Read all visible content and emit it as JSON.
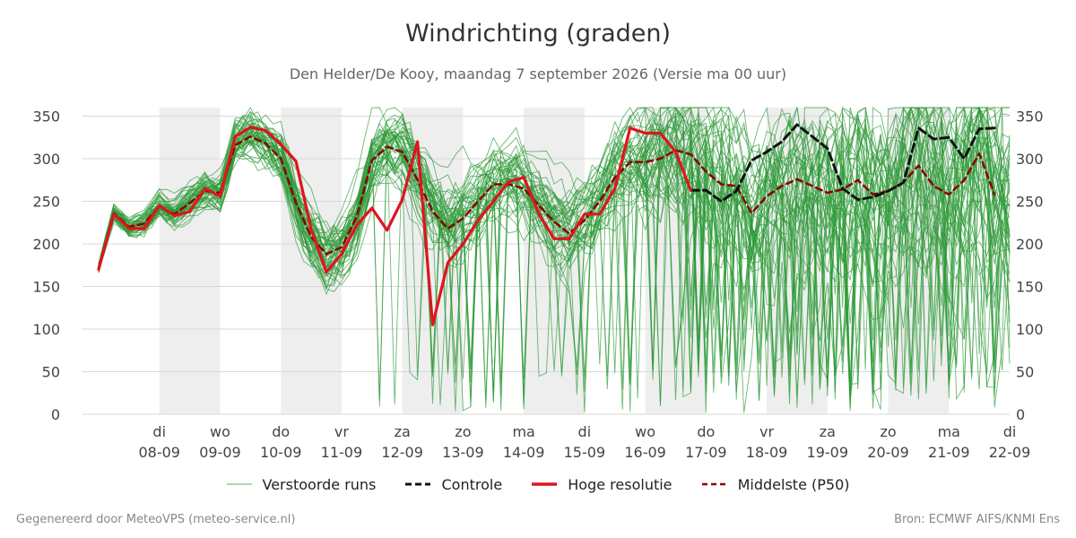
{
  "title": "Windrichting (graden)",
  "subtitle": "Den Helder/De Kooy, maandag  7 september 2026 (Versie ma 00 uur)",
  "footer": {
    "left": "Gegenereerd door MeteoVPS (meteo-service.nl)",
    "right": "Bron: ECMWF AIFS/KNMI Ens"
  },
  "legend": [
    {
      "label": "Verstoorde runs",
      "color": "#3a9a3a",
      "style": "thin"
    },
    {
      "label": "Controle",
      "color": "#111111",
      "style": "dashed"
    },
    {
      "label": "Hoge resolutie",
      "color": "#e0141e",
      "style": "solid"
    },
    {
      "label": "Middelste (P50)",
      "color": "#8b0000",
      "style": "dashed"
    }
  ],
  "chart_data": {
    "type": "line",
    "x_unit": "dagen na 07-09 00 uur",
    "xlim": [
      0,
      15
    ],
    "ylim": [
      0,
      360
    ],
    "yticks": [
      0,
      50,
      100,
      150,
      200,
      250,
      300,
      350
    ],
    "grid": true,
    "legend_position": "bottom",
    "weekend_shading": [
      [
        1,
        2
      ],
      [
        3,
        4
      ],
      [
        5,
        6
      ],
      [
        7,
        8
      ],
      [
        9,
        10
      ],
      [
        11,
        12
      ],
      [
        13,
        14
      ]
    ],
    "day_ticks": [
      {
        "x": 1,
        "day": "di",
        "date": "08-09"
      },
      {
        "x": 2,
        "day": "wo",
        "date": "09-09"
      },
      {
        "x": 3,
        "day": "do",
        "date": "10-09"
      },
      {
        "x": 4,
        "day": "vr",
        "date": "11-09"
      },
      {
        "x": 5,
        "day": "za",
        "date": "12-09"
      },
      {
        "x": 6,
        "day": "zo",
        "date": "13-09"
      },
      {
        "x": 7,
        "day": "ma",
        "date": "14-09"
      },
      {
        "x": 8,
        "day": "di",
        "date": "15-09"
      },
      {
        "x": 9,
        "day": "wo",
        "date": "16-09"
      },
      {
        "x": 10,
        "day": "do",
        "date": "17-09"
      },
      {
        "x": 11,
        "day": "vr",
        "date": "18-09"
      },
      {
        "x": 12,
        "day": "za",
        "date": "19-09"
      },
      {
        "x": 13,
        "day": "zo",
        "date": "20-09"
      },
      {
        "x": 14,
        "day": "ma",
        "date": "21-09"
      },
      {
        "x": 15,
        "day": "di",
        "date": "22-09"
      }
    ],
    "series": [
      {
        "name": "Hoge resolutie",
        "color": "#e0141e",
        "style": "solid",
        "points": [
          [
            0,
            170
          ],
          [
            0.25,
            235
          ],
          [
            0.5,
            218
          ],
          [
            0.75,
            218
          ],
          [
            1,
            245
          ],
          [
            1.25,
            233
          ],
          [
            1.5,
            238
          ],
          [
            1.75,
            265
          ],
          [
            2,
            256
          ],
          [
            2.25,
            326
          ],
          [
            2.5,
            337
          ],
          [
            2.75,
            333
          ],
          [
            3,
            317
          ],
          [
            3.25,
            297
          ],
          [
            3.5,
            217
          ],
          [
            3.75,
            167
          ],
          [
            4,
            188
          ],
          [
            4.25,
            222
          ],
          [
            4.5,
            242
          ],
          [
            4.75,
            216
          ],
          [
            5,
            252
          ],
          [
            5.25,
            320
          ],
          [
            5.5,
            105
          ],
          [
            5.75,
            178
          ],
          [
            6,
            200
          ],
          [
            6.25,
            228
          ],
          [
            6.5,
            250
          ],
          [
            6.75,
            273
          ],
          [
            7,
            278
          ],
          [
            7.25,
            235
          ],
          [
            7.5,
            206
          ],
          [
            7.75,
            206
          ],
          [
            8,
            235
          ],
          [
            8.25,
            235
          ],
          [
            8.5,
            265
          ],
          [
            8.75,
            336
          ],
          [
            9,
            330
          ],
          [
            9.25,
            330
          ],
          [
            9.5,
            308
          ],
          [
            9.75,
            263
          ]
        ]
      },
      {
        "name": "Controle",
        "color": "#111111",
        "style": "dashed",
        "points": [
          [
            9.75,
            263
          ],
          [
            10,
            263
          ],
          [
            10.25,
            250
          ],
          [
            10.5,
            262
          ],
          [
            10.75,
            298
          ],
          [
            11,
            308
          ],
          [
            11.25,
            320
          ],
          [
            11.5,
            340
          ],
          [
            11.75,
            326
          ],
          [
            12,
            312
          ],
          [
            12.25,
            265
          ],
          [
            12.5,
            252
          ],
          [
            12.75,
            255
          ],
          [
            13,
            262
          ],
          [
            13.25,
            272
          ],
          [
            13.5,
            336
          ],
          [
            13.75,
            323
          ],
          [
            14,
            325
          ],
          [
            14.25,
            300
          ],
          [
            14.5,
            335
          ],
          [
            14.75,
            336
          ]
        ]
      },
      {
        "name": "Middelste (P50)",
        "color": "#8b0000",
        "style": "dashed",
        "points": [
          [
            0,
            172
          ],
          [
            0.25,
            236
          ],
          [
            0.5,
            220
          ],
          [
            0.75,
            224
          ],
          [
            1,
            244
          ],
          [
            1.25,
            235
          ],
          [
            1.5,
            248
          ],
          [
            1.75,
            262
          ],
          [
            2,
            260
          ],
          [
            2.25,
            316
          ],
          [
            2.5,
            326
          ],
          [
            2.75,
            318
          ],
          [
            3,
            300
          ],
          [
            3.25,
            248
          ],
          [
            3.5,
            208
          ],
          [
            3.75,
            188
          ],
          [
            4,
            196
          ],
          [
            4.25,
            232
          ],
          [
            4.5,
            298
          ],
          [
            4.75,
            314
          ],
          [
            5,
            308
          ],
          [
            5.25,
            275
          ],
          [
            5.5,
            238
          ],
          [
            5.75,
            218
          ],
          [
            6,
            230
          ],
          [
            6.25,
            250
          ],
          [
            6.5,
            270
          ],
          [
            6.75,
            270
          ],
          [
            7,
            265
          ],
          [
            7.25,
            245
          ],
          [
            7.5,
            226
          ],
          [
            7.75,
            212
          ],
          [
            8,
            228
          ],
          [
            8.25,
            250
          ],
          [
            8.5,
            278
          ],
          [
            8.75,
            296
          ],
          [
            9,
            296
          ],
          [
            9.25,
            300
          ],
          [
            9.5,
            310
          ],
          [
            9.75,
            305
          ],
          [
            10,
            285
          ],
          [
            10.25,
            270
          ],
          [
            10.5,
            268
          ],
          [
            10.75,
            236
          ],
          [
            11,
            256
          ],
          [
            11.25,
            268
          ],
          [
            11.5,
            276
          ],
          [
            11.75,
            268
          ],
          [
            12,
            260
          ],
          [
            12.25,
            264
          ],
          [
            12.5,
            275
          ],
          [
            12.75,
            258
          ],
          [
            13,
            262
          ],
          [
            13.25,
            272
          ],
          [
            13.5,
            292
          ],
          [
            13.75,
            268
          ],
          [
            14,
            258
          ],
          [
            14.25,
            275
          ],
          [
            14.5,
            306
          ],
          [
            14.75,
            258
          ]
        ]
      }
    ]
  }
}
